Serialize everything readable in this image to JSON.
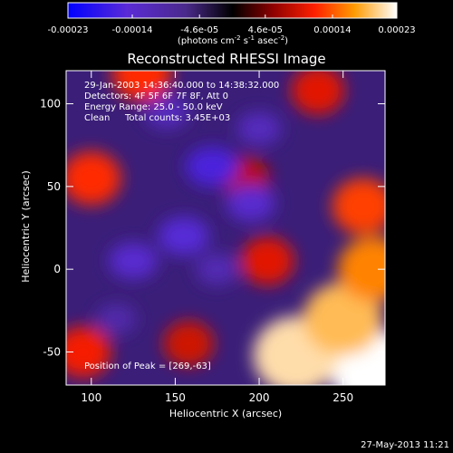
{
  "chart_data": {
    "type": "heatmap",
    "title": "Reconstructed RHESSI Image",
    "xlabel": "Heliocentric X (arcsec)",
    "ylabel": "Heliocentric Y (arcsec)",
    "xlim": [
      85,
      275
    ],
    "ylim": [
      -70,
      120
    ],
    "x_ticks": [
      100,
      150,
      200,
      250
    ],
    "y_ticks": [
      100,
      50,
      0,
      -50
    ],
    "x_tick_labels": [
      "100",
      "150",
      "200",
      "250"
    ],
    "y_tick_labels": [
      "100",
      "50",
      "0",
      "-50"
    ],
    "colorbar": {
      "ticks": [
        -0.00023,
        -0.00014,
        -4.6e-05,
        4.6e-05,
        0.00014,
        0.00023
      ],
      "tick_labels": [
        "-0.00023",
        "-0.00014",
        "-4.6e-05",
        "4.6e-05",
        "0.00014",
        "0.00023"
      ],
      "units_prefix": "(photons cm",
      "units_sup1": "-2",
      "units_mid": " s",
      "units_sup2": "-1",
      "units_mid2": " asec",
      "units_sup3": "-2",
      "units_suffix": ")",
      "range": [
        -0.00023,
        0.00023
      ]
    },
    "annotations": {
      "time": "29-Jan-2003 14:36:40.000 to 14:38:32.000",
      "detectors": "Detectors: 4F 5F 6F 7F 8F, Att 0",
      "energy": "Energy Range: 25.0 - 50.0 keV",
      "method": "Clean",
      "counts": "Total counts: 3.45E+03",
      "peak": "Position of Peak = [269,-63]"
    },
    "peak": [
      269,
      -63
    ],
    "bright_regions": [
      {
        "x": 270,
        "y": -62,
        "value": 0.00023
      },
      {
        "x": 222,
        "y": -52,
        "value": 0.00021
      },
      {
        "x": 250,
        "y": -30,
        "value": 0.00019
      },
      {
        "x": 268,
        "y": 0,
        "value": 0.00016
      },
      {
        "x": 262,
        "y": 38,
        "value": 0.00013
      },
      {
        "x": 205,
        "y": 5,
        "value": 0.0001
      },
      {
        "x": 100,
        "y": 55,
        "value": 0.00012
      },
      {
        "x": 130,
        "y": 118,
        "value": 0.00012
      },
      {
        "x": 95,
        "y": -50,
        "value": 0.00011
      },
      {
        "x": 235,
        "y": 108,
        "value": 0.0001
      },
      {
        "x": 158,
        "y": -45,
        "value": 9e-05
      },
      {
        "x": 192,
        "y": 55,
        "value": 8e-05
      }
    ],
    "dark_regions": [
      {
        "x": 172,
        "y": 62,
        "value": -0.00016
      },
      {
        "x": 155,
        "y": 20,
        "value": -0.00015
      },
      {
        "x": 195,
        "y": 40,
        "value": -0.00014
      },
      {
        "x": 125,
        "y": 5,
        "value": -0.00014
      },
      {
        "x": 145,
        "y": 95,
        "value": -0.00012
      },
      {
        "x": 200,
        "y": 85,
        "value": -0.00012
      },
      {
        "x": 175,
        "y": 0,
        "value": -0.00011
      },
      {
        "x": 115,
        "y": -30,
        "value": -0.0001
      }
    ]
  },
  "footer": {
    "timestamp": "27-May-2013 11:21"
  }
}
